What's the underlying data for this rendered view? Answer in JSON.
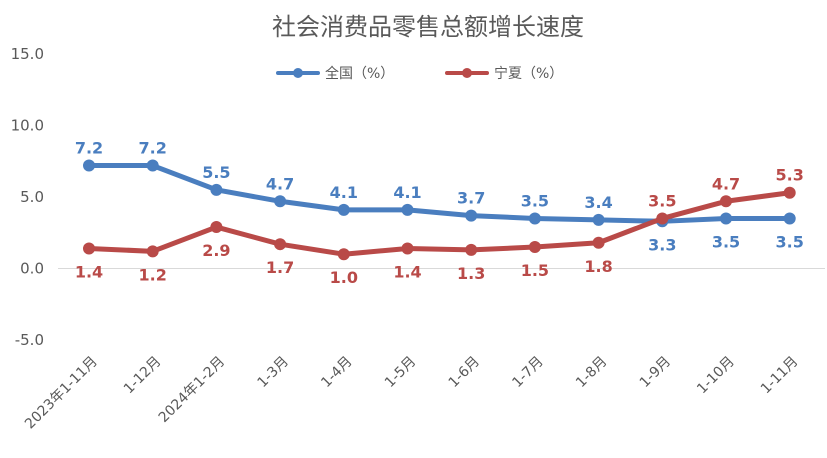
{
  "chart_data": {
    "type": "line",
    "title": "社会消费品零售总额增长速度",
    "categories": [
      "2023年1-11月",
      "1-12月",
      "2024年1-2月",
      "1-3月",
      "1-4月",
      "1-5月",
      "1-6月",
      "1-7月",
      "1-8月",
      "1-9月",
      "1-10月",
      "1-11月"
    ],
    "series": [
      {
        "name": "全国（%）",
        "color": "#4a7ebf",
        "values": [
          7.2,
          7.2,
          5.5,
          4.7,
          4.1,
          4.1,
          3.7,
          3.5,
          3.4,
          3.3,
          3.5,
          3.5
        ]
      },
      {
        "name": "宁夏（%）",
        "color": "#b94a48",
        "values": [
          1.4,
          1.2,
          2.9,
          1.7,
          1.0,
          1.4,
          1.3,
          1.5,
          1.8,
          3.5,
          4.7,
          5.3
        ]
      }
    ],
    "y_ticks": [
      "15.0",
      "10.0",
      "5.0",
      "0.0",
      "-5.0"
    ],
    "ylim": [
      -5,
      15
    ],
    "grid": false,
    "legend_position": "top"
  }
}
